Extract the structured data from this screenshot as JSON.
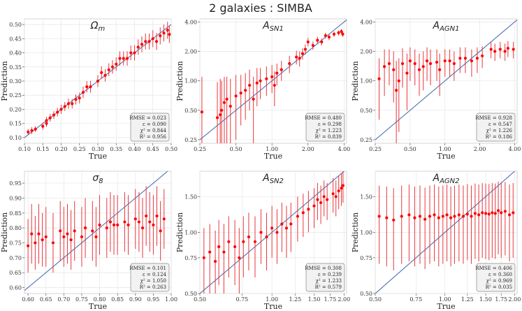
{
  "figure": {
    "title": "2 galaxies : SIMBA",
    "colors": {
      "points": "#ff0000",
      "errorbars": "#e8363c",
      "diagonal": "#4c72b0",
      "panel_bg": "#ffffff",
      "grid": "#e6e6e6"
    }
  },
  "chart_data": [
    {
      "type": "scatter",
      "title": "Ω",
      "title_sub": "m",
      "scale": "linear",
      "xlabel": "True",
      "ylabel": "Prediction",
      "xlim": [
        0.1,
        0.5
      ],
      "ylim": [
        0.08,
        0.52
      ],
      "xticks": [
        0.1,
        0.15,
        0.2,
        0.25,
        0.3,
        0.35,
        0.4,
        0.45,
        0.5
      ],
      "xtick_labels": [
        "0.10",
        "0.15",
        "0.20",
        "0.25",
        "0.30",
        "0.35",
        "0.40",
        "0.45",
        "0.50"
      ],
      "yticks": [
        0.1,
        0.15,
        0.2,
        0.25,
        0.3,
        0.35,
        0.4,
        0.45,
        0.5
      ],
      "ytick_labels": [
        "0.10",
        "0.15",
        "0.20",
        "0.25",
        "0.30",
        "0.35",
        "0.40",
        "0.45",
        "0.50"
      ],
      "stats": [
        "RMSE = 0.023",
        "ε = 0.090",
        "χ² = 0.844",
        "R² = 0.956"
      ],
      "points": [
        [
          0.11,
          0.12,
          0.01
        ],
        [
          0.12,
          0.125,
          0.012
        ],
        [
          0.13,
          0.13,
          0.01
        ],
        [
          0.15,
          0.14,
          0.012
        ],
        [
          0.16,
          0.16,
          0.013
        ],
        [
          0.16,
          0.15,
          0.012
        ],
        [
          0.17,
          0.17,
          0.014
        ],
        [
          0.18,
          0.18,
          0.014
        ],
        [
          0.19,
          0.19,
          0.015
        ],
        [
          0.2,
          0.2,
          0.016
        ],
        [
          0.21,
          0.21,
          0.016
        ],
        [
          0.22,
          0.22,
          0.018
        ],
        [
          0.23,
          0.22,
          0.017
        ],
        [
          0.24,
          0.235,
          0.018
        ],
        [
          0.25,
          0.24,
          0.019
        ],
        [
          0.26,
          0.26,
          0.02
        ],
        [
          0.27,
          0.28,
          0.02
        ],
        [
          0.28,
          0.28,
          0.021
        ],
        [
          0.3,
          0.3,
          0.021
        ],
        [
          0.31,
          0.33,
          0.022
        ],
        [
          0.32,
          0.32,
          0.022
        ],
        [
          0.33,
          0.34,
          0.023
        ],
        [
          0.34,
          0.35,
          0.024
        ],
        [
          0.35,
          0.36,
          0.024
        ],
        [
          0.36,
          0.38,
          0.025
        ],
        [
          0.37,
          0.38,
          0.025
        ],
        [
          0.38,
          0.38,
          0.026
        ],
        [
          0.39,
          0.4,
          0.026
        ],
        [
          0.4,
          0.4,
          0.027
        ],
        [
          0.41,
          0.42,
          0.027
        ],
        [
          0.42,
          0.43,
          0.028
        ],
        [
          0.43,
          0.44,
          0.028
        ],
        [
          0.44,
          0.44,
          0.028
        ],
        [
          0.45,
          0.45,
          0.03
        ],
        [
          0.46,
          0.44,
          0.03
        ],
        [
          0.47,
          0.46,
          0.03
        ],
        [
          0.48,
          0.47,
          0.03
        ],
        [
          0.49,
          0.48,
          0.03
        ],
        [
          0.495,
          0.465,
          0.03
        ]
      ]
    },
    {
      "type": "scatter",
      "title": "A",
      "title_sub": "SN1",
      "scale": "log",
      "xlabel": "True",
      "ylabel": "Prediction",
      "xlim": [
        0.25,
        4.2
      ],
      "ylim": [
        0.23,
        4.3
      ],
      "xticks": [
        0.25,
        0.5,
        1.0,
        2.0,
        4.0
      ],
      "xtick_labels": [
        "0.25",
        "0.50",
        "1.00",
        "2.00",
        "4.00"
      ],
      "yticks": [
        0.25,
        0.5,
        1.0,
        2.0,
        4.0
      ],
      "ytick_labels": [
        "0.25",
        "0.50",
        "1.00",
        "2.00",
        "4.00"
      ],
      "stats": [
        "RMSE = 0.480",
        "ε = 0.298",
        "χ² = 1.223",
        "R² = 0.839"
      ],
      "points": [
        [
          0.26,
          0.48,
          0.62
        ],
        [
          0.35,
          0.42,
          0.55
        ],
        [
          0.37,
          0.45,
          0.6
        ],
        [
          0.38,
          0.5,
          0.5
        ],
        [
          0.4,
          0.6,
          0.5
        ],
        [
          0.42,
          0.65,
          0.45
        ],
        [
          0.45,
          0.55,
          0.5
        ],
        [
          0.5,
          0.7,
          0.45
        ],
        [
          0.55,
          0.75,
          0.4
        ],
        [
          0.6,
          0.8,
          0.4
        ],
        [
          0.65,
          0.9,
          0.4
        ],
        [
          0.7,
          0.65,
          0.45
        ],
        [
          0.75,
          0.95,
          0.4
        ],
        [
          0.8,
          1.0,
          0.35
        ],
        [
          0.9,
          1.05,
          0.35
        ],
        [
          1.0,
          1.1,
          0.35
        ],
        [
          1.05,
          0.9,
          0.35
        ],
        [
          1.1,
          1.2,
          0.3
        ],
        [
          1.2,
          1.3,
          0.3
        ],
        [
          1.4,
          1.5,
          0.3
        ],
        [
          1.6,
          1.75,
          0.28
        ],
        [
          1.7,
          1.7,
          0.3
        ],
        [
          1.8,
          1.9,
          0.25
        ],
        [
          1.9,
          2.1,
          0.25
        ],
        [
          2.0,
          2.5,
          0.25
        ],
        [
          2.2,
          2.3,
          0.22
        ],
        [
          2.4,
          2.6,
          0.22
        ],
        [
          2.6,
          2.5,
          0.2
        ],
        [
          2.8,
          2.9,
          0.2
        ],
        [
          3.0,
          2.8,
          0.2
        ],
        [
          3.3,
          3.0,
          0.18
        ],
        [
          3.6,
          3.1,
          0.18
        ],
        [
          3.8,
          3.2,
          0.18
        ],
        [
          3.9,
          3.0,
          0.18
        ]
      ]
    },
    {
      "type": "scatter",
      "title": "A",
      "title_sub": "AGN1",
      "scale": "log",
      "xlabel": "True",
      "ylabel": "Prediction",
      "xlim": [
        0.25,
        4.2
      ],
      "ylim": [
        0.23,
        4.3
      ],
      "xticks": [
        0.25,
        0.5,
        1.0,
        2.0,
        4.0
      ],
      "xtick_labels": [
        "0.25",
        "0.50",
        "1.00",
        "2.00",
        "4.00"
      ],
      "yticks": [
        0.25,
        0.5,
        1.0,
        2.0,
        4.0
      ],
      "ytick_labels": [
        "0.25",
        "0.50",
        "1.00",
        "2.00",
        "4.00"
      ],
      "stats": [
        "RMSE = 0.928",
        "ε = 0.547",
        "χ² = 1.226",
        "R² = 0.186"
      ],
      "points": [
        [
          0.27,
          1.05,
          0.65
        ],
        [
          0.3,
          1.4,
          0.7
        ],
        [
          0.33,
          1.5,
          0.6
        ],
        [
          0.36,
          1.3,
          0.7
        ],
        [
          0.38,
          0.8,
          0.8
        ],
        [
          0.4,
          1.0,
          0.7
        ],
        [
          0.43,
          1.5,
          0.65
        ],
        [
          0.47,
          1.2,
          0.7
        ],
        [
          0.5,
          1.6,
          0.6
        ],
        [
          0.55,
          1.5,
          0.6
        ],
        [
          0.6,
          1.3,
          0.6
        ],
        [
          0.65,
          1.4,
          0.6
        ],
        [
          0.7,
          1.6,
          0.6
        ],
        [
          0.75,
          1.5,
          0.6
        ],
        [
          0.85,
          1.55,
          0.55
        ],
        [
          0.9,
          1.3,
          0.6
        ],
        [
          1.0,
          1.6,
          0.5
        ],
        [
          1.1,
          1.6,
          0.5
        ],
        [
          1.2,
          1.5,
          0.5
        ],
        [
          1.35,
          1.7,
          0.5
        ],
        [
          1.5,
          1.7,
          0.5
        ],
        [
          1.7,
          1.6,
          0.5
        ],
        [
          1.9,
          1.7,
          0.5
        ],
        [
          2.1,
          1.8,
          0.45
        ],
        [
          2.5,
          2.1,
          0.4
        ],
        [
          2.7,
          2.0,
          0.4
        ],
        [
          3.0,
          2.1,
          0.4
        ],
        [
          3.3,
          2.0,
          0.4
        ],
        [
          3.5,
          2.15,
          0.4
        ],
        [
          3.9,
          2.1,
          0.4
        ]
      ]
    },
    {
      "type": "scatter",
      "title": "σ",
      "title_sub": "8",
      "scale": "linear",
      "xlabel": "True",
      "ylabel": "Prediction",
      "xlim": [
        0.59,
        1.0
      ],
      "ylim": [
        0.58,
        0.99
      ],
      "xticks": [
        0.6,
        0.65,
        0.7,
        0.75,
        0.8,
        0.85,
        0.9,
        0.95,
        1.0
      ],
      "xtick_labels": [
        "0.60",
        "0.65",
        "0.70",
        "0.75",
        "0.80",
        "0.85",
        "0.90",
        "0.95",
        "1.00"
      ],
      "yticks": [
        0.6,
        0.65,
        0.7,
        0.75,
        0.8,
        0.85,
        0.9,
        0.95
      ],
      "ytick_labels": [
        "0.60",
        "0.65",
        "0.70",
        "0.75",
        "0.80",
        "0.85",
        "0.90",
        "0.95"
      ],
      "stats": [
        "RMSE = 0.101",
        "ε = 0.124",
        "χ² = 1.050",
        "R² = 0.263"
      ],
      "points": [
        [
          0.6,
          0.74,
          0.09
        ],
        [
          0.61,
          0.78,
          0.1
        ],
        [
          0.62,
          0.75,
          0.09
        ],
        [
          0.63,
          0.78,
          0.1
        ],
        [
          0.64,
          0.76,
          0.09
        ],
        [
          0.65,
          0.77,
          0.1
        ],
        [
          0.67,
          0.75,
          0.1
        ],
        [
          0.69,
          0.79,
          0.1
        ],
        [
          0.7,
          0.77,
          0.1
        ],
        [
          0.71,
          0.78,
          0.1
        ],
        [
          0.72,
          0.76,
          0.1
        ],
        [
          0.73,
          0.79,
          0.1
        ],
        [
          0.75,
          0.77,
          0.1
        ],
        [
          0.76,
          0.8,
          0.1
        ],
        [
          0.78,
          0.79,
          0.1
        ],
        [
          0.79,
          0.77,
          0.1
        ],
        [
          0.8,
          0.81,
          0.1
        ],
        [
          0.82,
          0.8,
          0.1
        ],
        [
          0.83,
          0.82,
          0.1
        ],
        [
          0.84,
          0.81,
          0.1
        ],
        [
          0.85,
          0.81,
          0.1
        ],
        [
          0.87,
          0.82,
          0.1
        ],
        [
          0.88,
          0.81,
          0.1
        ],
        [
          0.9,
          0.83,
          0.1
        ],
        [
          0.91,
          0.82,
          0.1
        ],
        [
          0.92,
          0.8,
          0.1
        ],
        [
          0.93,
          0.84,
          0.1
        ],
        [
          0.94,
          0.82,
          0.1
        ],
        [
          0.95,
          0.81,
          0.1
        ],
        [
          0.96,
          0.84,
          0.1
        ],
        [
          0.97,
          0.79,
          0.1
        ],
        [
          0.98,
          0.83,
          0.1
        ]
      ]
    },
    {
      "type": "scatter",
      "title": "A",
      "title_sub": "SN2",
      "scale": "log",
      "xlabel": "True",
      "ylabel": "Prediction",
      "xlim": [
        0.5,
        2.05
      ],
      "ylim": [
        0.5,
        2.0
      ],
      "xticks": [
        0.5,
        0.75,
        1.0,
        1.25,
        1.5,
        1.75,
        2.0
      ],
      "xtick_labels": [
        "0.50",
        "0.75",
        "1.00",
        "1.25",
        "1.50",
        "1.75",
        "2.00"
      ],
      "yticks": [
        0.5,
        0.75,
        1.0,
        1.5
      ],
      "ytick_labels": [
        "0.50",
        "0.75",
        "1.00",
        "1.50"
      ],
      "stats": [
        "RMSE = 0.308",
        "ε = 0.239",
        "χ² = 1.233",
        "R² = 0.579"
      ],
      "points": [
        [
          0.52,
          0.75,
          0.3
        ],
        [
          0.55,
          0.8,
          0.3
        ],
        [
          0.58,
          0.72,
          0.3
        ],
        [
          0.6,
          0.85,
          0.3
        ],
        [
          0.63,
          0.8,
          0.3
        ],
        [
          0.66,
          0.9,
          0.3
        ],
        [
          0.7,
          0.85,
          0.3
        ],
        [
          0.73,
          0.75,
          0.3
        ],
        [
          0.76,
          0.9,
          0.3
        ],
        [
          0.8,
          0.95,
          0.3
        ],
        [
          0.85,
          0.9,
          0.3
        ],
        [
          0.9,
          1.0,
          0.3
        ],
        [
          0.95,
          0.95,
          0.3
        ],
        [
          1.0,
          1.05,
          0.3
        ],
        [
          1.05,
          1.0,
          0.3
        ],
        [
          1.1,
          1.1,
          0.3
        ],
        [
          1.15,
          1.05,
          0.3
        ],
        [
          1.2,
          1.1,
          0.3
        ],
        [
          1.28,
          1.2,
          0.3
        ],
        [
          1.35,
          1.25,
          0.3
        ],
        [
          1.42,
          1.3,
          0.3
        ],
        [
          1.5,
          1.35,
          0.3
        ],
        [
          1.55,
          1.45,
          0.3
        ],
        [
          1.6,
          1.4,
          0.3
        ],
        [
          1.65,
          1.5,
          0.3
        ],
        [
          1.7,
          1.45,
          0.3
        ],
        [
          1.8,
          1.55,
          0.3
        ],
        [
          1.85,
          1.5,
          0.3
        ],
        [
          1.9,
          1.6,
          0.3
        ],
        [
          1.95,
          1.65,
          0.3
        ],
        [
          1.98,
          1.7,
          0.3
        ]
      ]
    },
    {
      "type": "scatter",
      "title": "A",
      "title_sub": "AGN2",
      "scale": "log",
      "xlabel": "True",
      "ylabel": "Prediction",
      "xlim": [
        0.5,
        2.05
      ],
      "ylim": [
        0.5,
        2.0
      ],
      "xticks": [
        0.5,
        0.75,
        1.0,
        1.25,
        1.5,
        1.75,
        2.0
      ],
      "xtick_labels": [
        "0.50",
        "0.75",
        "1.00",
        "1.25",
        "1.50",
        "1.75",
        "2.00"
      ],
      "yticks": [
        0.5,
        0.75,
        1.0,
        1.5
      ],
      "ytick_labels": [
        "0.50",
        "0.75",
        "1.00",
        "1.50"
      ],
      "stats": [
        "RMSE = 0.406",
        "ε = 0.360",
        "χ² = 0.969",
        "R² = 0.035"
      ],
      "points": [
        [
          0.52,
          1.2,
          0.5
        ],
        [
          0.56,
          1.18,
          0.5
        ],
        [
          0.6,
          1.15,
          0.5
        ],
        [
          0.65,
          1.2,
          0.5
        ],
        [
          0.7,
          1.22,
          0.5
        ],
        [
          0.74,
          1.18,
          0.5
        ],
        [
          0.78,
          1.2,
          0.5
        ],
        [
          0.82,
          1.16,
          0.5
        ],
        [
          0.86,
          1.2,
          0.5
        ],
        [
          0.9,
          1.22,
          0.5
        ],
        [
          0.94,
          1.18,
          0.5
        ],
        [
          0.98,
          1.2,
          0.5
        ],
        [
          1.02,
          1.22,
          0.5
        ],
        [
          1.06,
          1.18,
          0.5
        ],
        [
          1.1,
          1.2,
          0.5
        ],
        [
          1.15,
          1.22,
          0.5
        ],
        [
          1.2,
          1.2,
          0.5
        ],
        [
          1.25,
          1.23,
          0.5
        ],
        [
          1.3,
          1.2,
          0.5
        ],
        [
          1.35,
          1.24,
          0.5
        ],
        [
          1.4,
          1.22,
          0.5
        ],
        [
          1.45,
          1.25,
          0.5
        ],
        [
          1.5,
          1.24,
          0.5
        ],
        [
          1.55,
          1.23,
          0.5
        ],
        [
          1.6,
          1.25,
          0.5
        ],
        [
          1.65,
          1.24,
          0.5
        ],
        [
          1.7,
          1.28,
          0.5
        ],
        [
          1.75,
          1.25,
          0.5
        ],
        [
          1.82,
          1.27,
          0.5
        ],
        [
          1.9,
          1.22,
          0.5
        ],
        [
          1.97,
          1.25,
          0.5
        ]
      ]
    }
  ]
}
